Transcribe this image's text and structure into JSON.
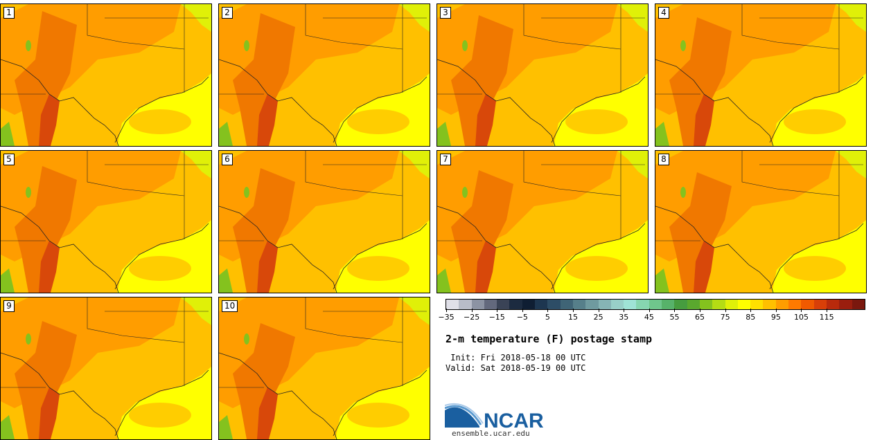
{
  "panels": [
    {
      "label": "1"
    },
    {
      "label": "2"
    },
    {
      "label": "3"
    },
    {
      "label": "4"
    },
    {
      "label": "5"
    },
    {
      "label": "6"
    },
    {
      "label": "7"
    },
    {
      "label": "8"
    },
    {
      "label": "9"
    },
    {
      "label": "10"
    }
  ],
  "legend": {
    "colors": [
      "#e0e0e8",
      "#b8bcc8",
      "#8c93a3",
      "#63697d",
      "#3a4356",
      "#1c2b40",
      "#0f1e33",
      "#1d3650",
      "#2d4d66",
      "#3f6476",
      "#567f8a",
      "#6f9a9f",
      "#86b4b5",
      "#98cfc8",
      "#9fe3d6",
      "#86d6b0",
      "#6fc68c",
      "#57b26a",
      "#469c3f",
      "#5aa82e",
      "#84c21e",
      "#b4dc14",
      "#e0f008",
      "#fffe00",
      "#ffe000",
      "#ffc000",
      "#ff9d00",
      "#ff7a00",
      "#f05a00",
      "#d83f08",
      "#b82a0c",
      "#9a1e0e",
      "#7a180e"
    ],
    "tick_labels": [
      "−35",
      "−25",
      "−15",
      "−5",
      "5",
      "15",
      "25",
      "35",
      "45",
      "55",
      "65",
      "75",
      "85",
      "95",
      "105",
      "115"
    ]
  },
  "title": "2-m temperature (F) postage stamp",
  "init_text": " Init: Fri 2018-05-18 00 UTC",
  "valid_text": "Valid: Sat 2018-05-19 00 UTC",
  "logo_text": "NCAR",
  "url": "ensemble.ucar.edu",
  "colors": {
    "ocean": "#ffff00",
    "warm": "#ffc000",
    "hot": "#ff9d00",
    "hotter": "#f07800",
    "hottest": "#d8480a",
    "cool": "#e0f008",
    "green": "#84c21e",
    "logo_blue": "#1a5fa0"
  }
}
